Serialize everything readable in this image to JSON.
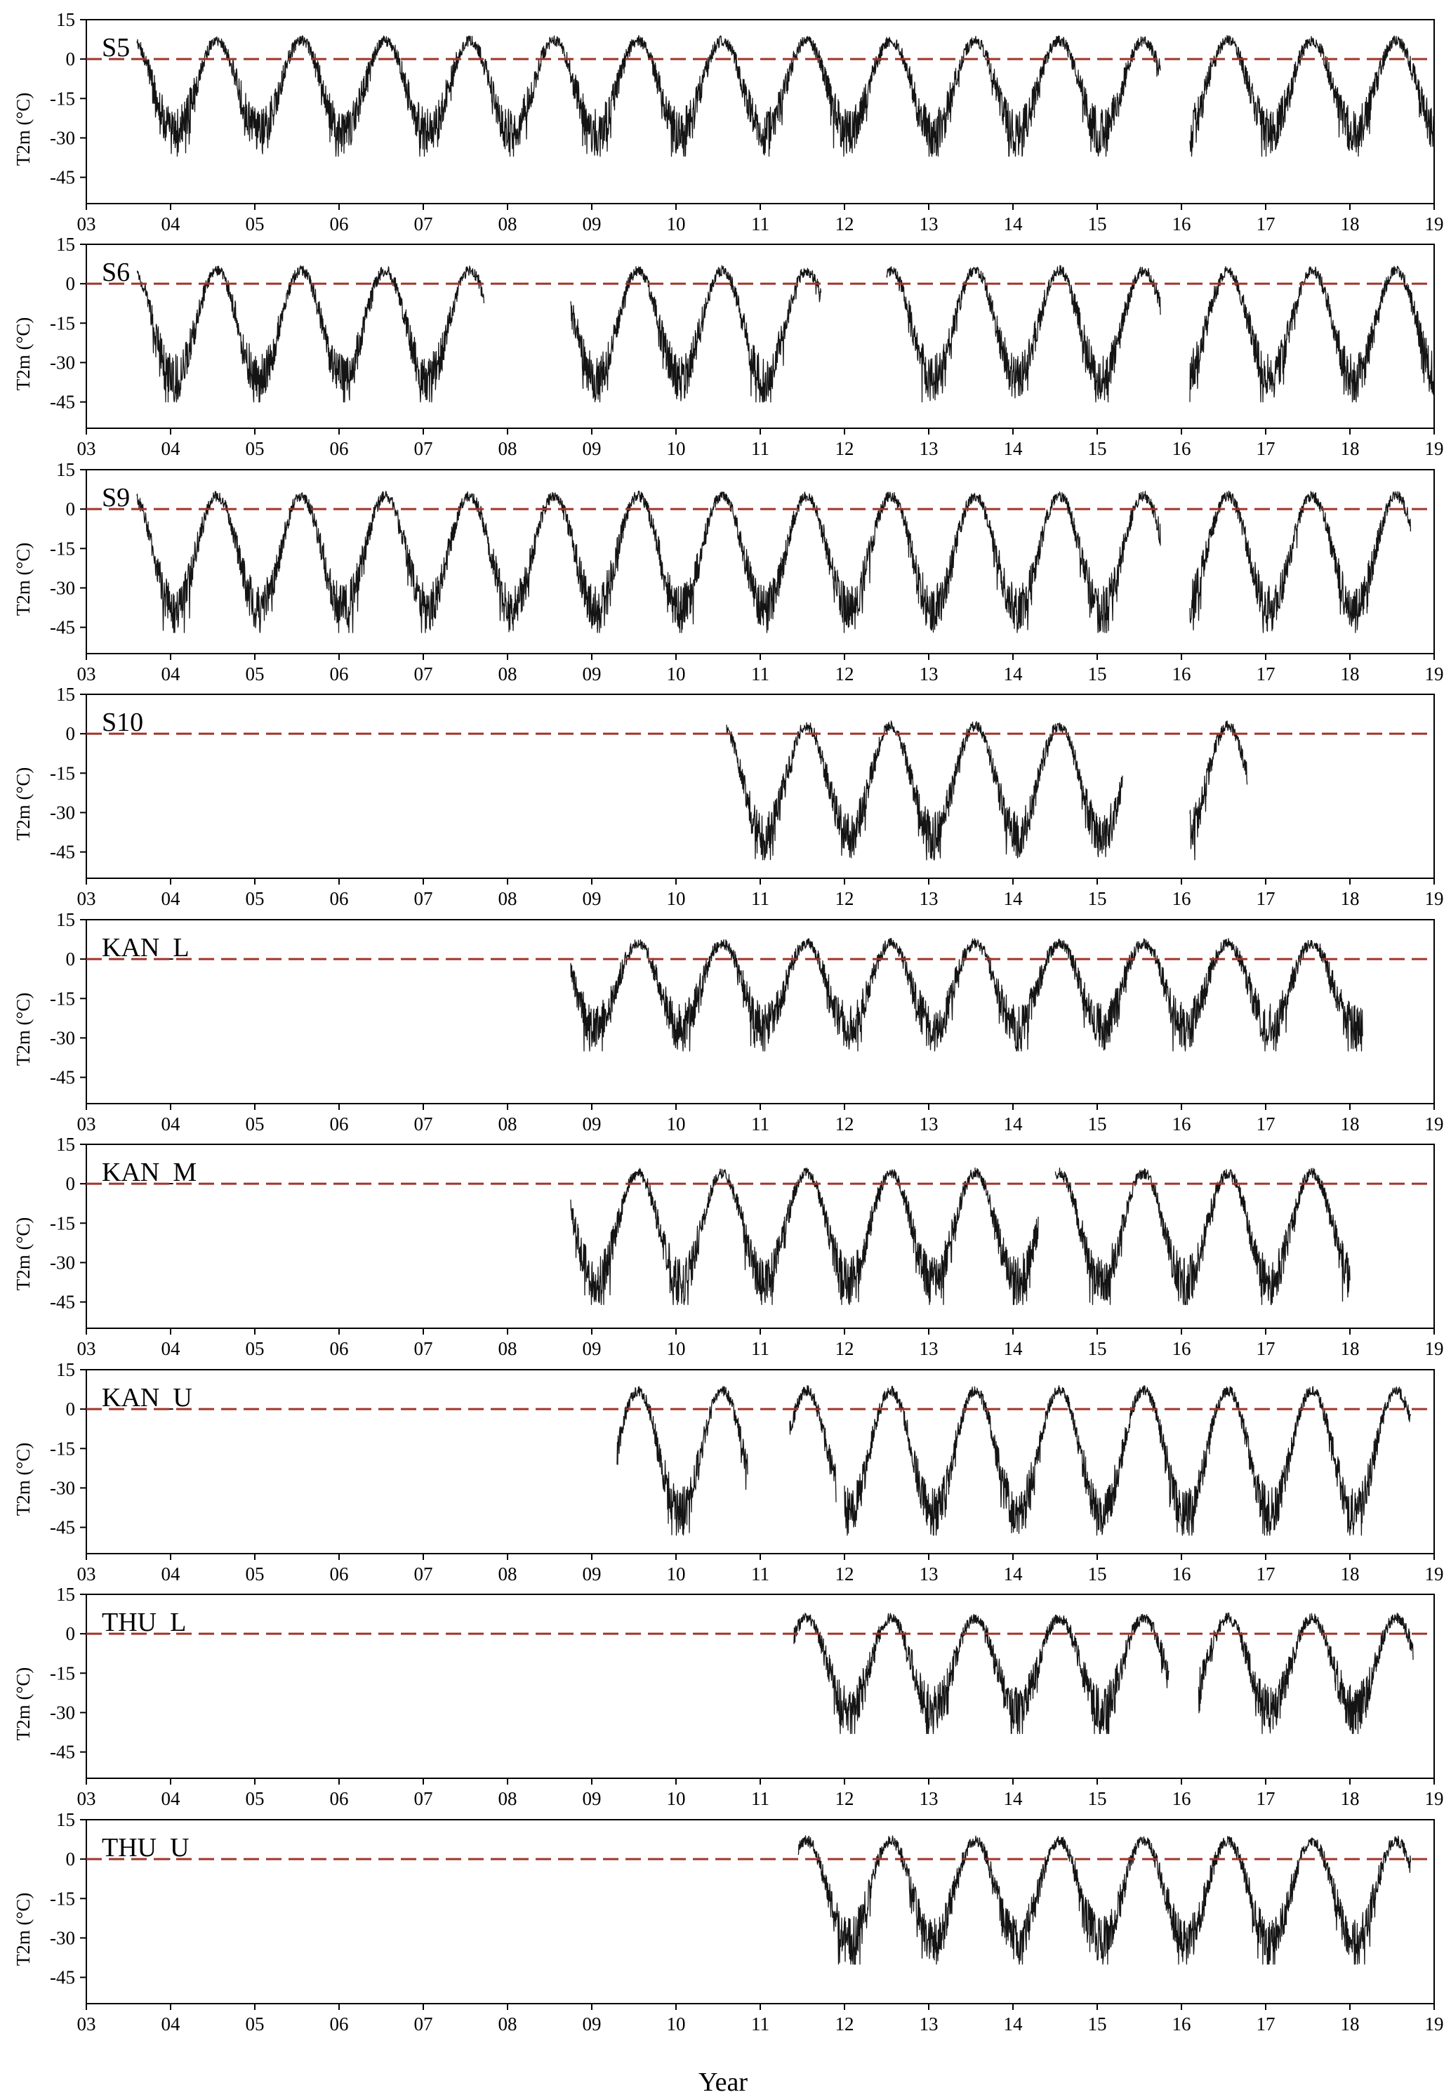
{
  "chart_data": {
    "type": "line",
    "xlabel": "Year",
    "ylabel": "T2m (°C)",
    "x_tick_labels": [
      "03",
      "04",
      "05",
      "06",
      "07",
      "08",
      "09",
      "10",
      "11",
      "12",
      "13",
      "14",
      "15",
      "16",
      "17",
      "18",
      "19"
    ],
    "y_tick_labels": [
      "15",
      "0",
      "-15",
      "-30",
      "-45"
    ],
    "ylim": [
      -55,
      15
    ],
    "grid": false,
    "reference_line": {
      "y": 0,
      "style": "dashed",
      "color": "#a0352a"
    },
    "line_color": "#141414",
    "panels": [
      {
        "station": "S5",
        "ranges": [
          [
            2003.6,
            2015.75
          ],
          [
            2016.1,
            2019.0
          ]
        ],
        "min_temp": -37,
        "max_temp": 10
      },
      {
        "station": "S6",
        "ranges": [
          [
            2003.6,
            2007.72
          ],
          [
            2008.75,
            2011.72
          ],
          [
            2012.5,
            2015.75
          ],
          [
            2016.1,
            2019.0
          ]
        ],
        "min_temp": -45,
        "max_temp": 8
      },
      {
        "station": "S9",
        "ranges": [
          [
            2003.6,
            2015.75
          ],
          [
            2016.1,
            2018.72
          ]
        ],
        "min_temp": -47,
        "max_temp": 8
      },
      {
        "station": "S10",
        "ranges": [
          [
            2010.6,
            2015.3
          ],
          [
            2016.1,
            2016.78
          ]
        ],
        "min_temp": -48,
        "max_temp": 6
      },
      {
        "station": "KAN_L",
        "ranges": [
          [
            2008.75,
            2018.15
          ]
        ],
        "min_temp": -35,
        "max_temp": 9
      },
      {
        "station": "KAN_M",
        "ranges": [
          [
            2008.75,
            2014.3
          ],
          [
            2014.5,
            2018.0
          ]
        ],
        "min_temp": -46,
        "max_temp": 7
      },
      {
        "station": "KAN_U",
        "ranges": [
          [
            2009.3,
            2010.85
          ],
          [
            2011.35,
            2011.9
          ],
          [
            2012.0,
            2018.72
          ]
        ],
        "min_temp": -48,
        "max_temp": 10
      },
      {
        "station": "THU_L",
        "ranges": [
          [
            2011.4,
            2015.85
          ],
          [
            2016.2,
            2018.75
          ]
        ],
        "min_temp": -38,
        "max_temp": 9
      },
      {
        "station": "THU_U",
        "ranges": [
          [
            2011.45,
            2018.72
          ]
        ],
        "min_temp": -40,
        "max_temp": 10
      }
    ]
  }
}
